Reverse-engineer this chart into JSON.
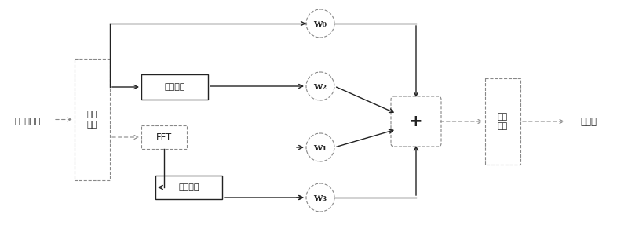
{
  "bg_color": "#ffffff",
  "lc": "#222222",
  "dc": "#888888",
  "labels": {
    "source": "原始数据流",
    "sp": "串并\n转换",
    "inv1": "反转模块",
    "fft": "FFT",
    "inv2": "反转模块",
    "w0": "w₀",
    "w1": "w₁",
    "w2": "w₂",
    "w3": "w₃",
    "adder": "+",
    "ps": "并串\n转换",
    "rf": "射频端"
  },
  "figsize": [
    8.0,
    2.96
  ],
  "dpi": 100
}
